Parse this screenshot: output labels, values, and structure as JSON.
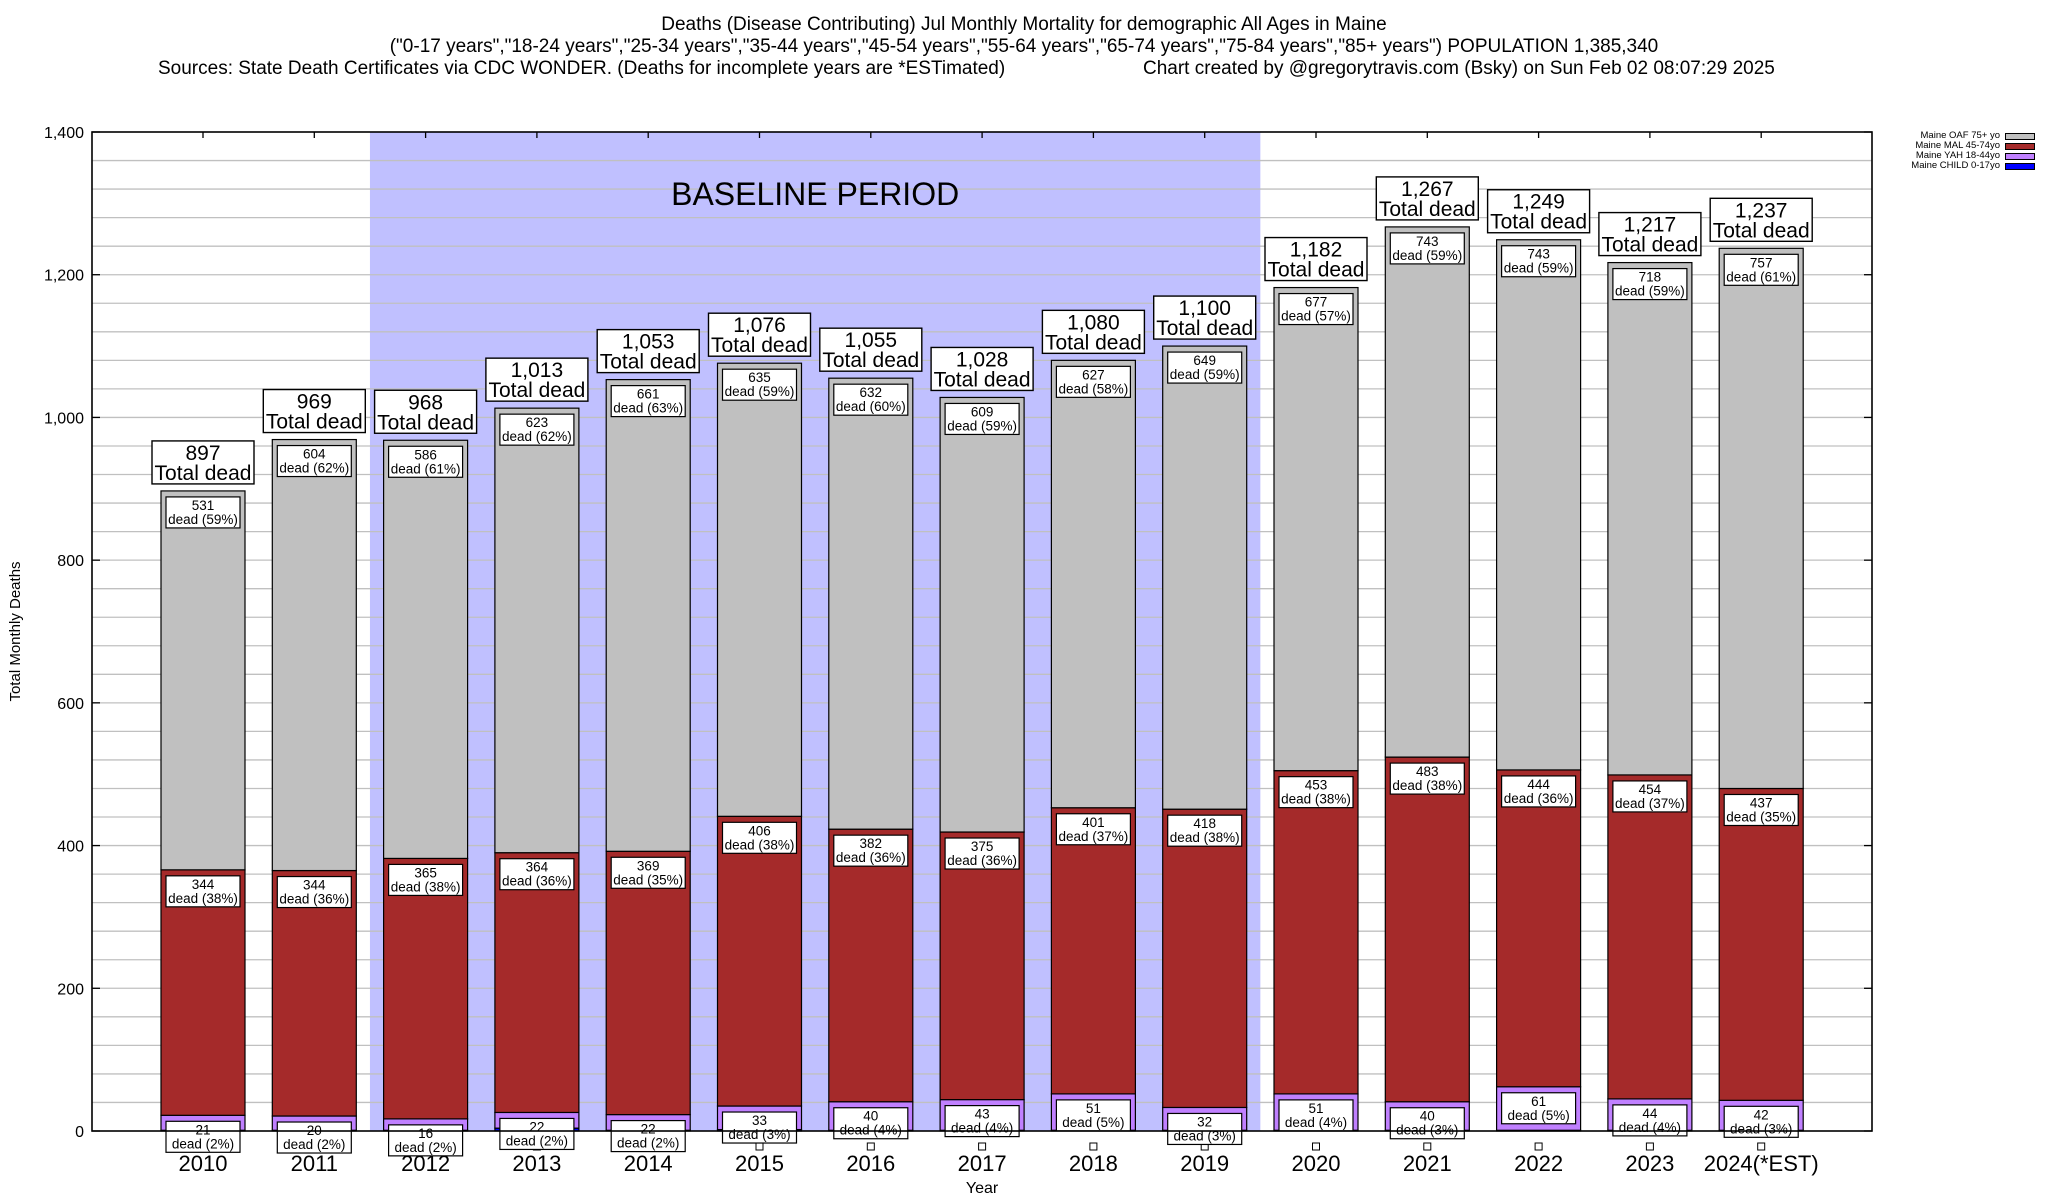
{
  "header": {
    "title": "Deaths (Disease Contributing) Jul Monthly Mortality for demographic All Ages in Maine",
    "subtitle": "(\"0-17 years\",\"18-24 years\",\"25-34 years\",\"35-44 years\",\"45-54 years\",\"55-64 years\",\"65-74 years\",\"75-84 years\",\"85+ years\") POPULATION 1,385,340",
    "sources": "Sources: State Death Certificates via CDC WONDER. (Deaths for incomplete years are *ESTimated)",
    "credit": "Chart created by @gregorytravis.com (Bsky) on Sun Feb 02 08:07:29 2025"
  },
  "chart_data": {
    "type": "bar",
    "stacked": true,
    "xlabel": "Year",
    "ylabel": "Total Monthly Deaths",
    "ylim": [
      0,
      1400
    ],
    "yticks": [
      0,
      200,
      400,
      600,
      800,
      1000,
      1200,
      1400
    ],
    "ytick_labels": [
      "0",
      "200",
      "400",
      "600",
      "800",
      "1,000",
      "1,200",
      "1,400"
    ],
    "grid": true,
    "legend_position": "top-right, outside plot",
    "categories": [
      "2010",
      "2011",
      "2012",
      "2013",
      "2014",
      "2015",
      "2016",
      "2017",
      "2018",
      "2019",
      "2020",
      "2021",
      "2022",
      "2023",
      "2024(*EST)"
    ],
    "annotation": {
      "label": "BASELINE PERIOD",
      "from": "2012",
      "to": "2019",
      "color": "#c0c0ff"
    },
    "total_label_suffix": "Total dead",
    "segment_label_word": "dead",
    "totals": [
      897,
      969,
      968,
      1013,
      1053,
      1076,
      1055,
      1028,
      1080,
      1100,
      1182,
      1267,
      1249,
      1217,
      1237
    ],
    "totals_text": [
      "897",
      "969",
      "968",
      "1,013",
      "1,053",
      "1,076",
      "1,055",
      "1,028",
      "1,080",
      "1,100",
      "1,182",
      "1,267",
      "1,249",
      "1,217",
      "1,237"
    ],
    "series": [
      {
        "name": "Maine CHILD 0-17yo",
        "color": "#0000ff",
        "values": [
          1,
          1,
          1,
          4,
          1,
          2,
          1,
          1,
          1,
          1,
          1,
          1,
          1,
          1,
          1
        ],
        "pct": [],
        "labeled": false
      },
      {
        "name": "Maine YAH 18-44yo",
        "color": "#c080ff",
        "values": [
          21,
          20,
          16,
          22,
          22,
          33,
          40,
          43,
          51,
          32,
          51,
          40,
          61,
          44,
          42
        ],
        "pct": [
          "2%",
          "2%",
          "2%",
          "2%",
          "2%",
          "3%",
          "4%",
          "4%",
          "5%",
          "3%",
          "4%",
          "3%",
          "5%",
          "4%",
          "3%"
        ],
        "labeled": true
      },
      {
        "name": "Maine MAL 45-74yo",
        "color": "#a52a2a",
        "values": [
          344,
          344,
          365,
          364,
          369,
          406,
          382,
          375,
          401,
          418,
          453,
          483,
          444,
          454,
          437
        ],
        "pct": [
          "38%",
          "36%",
          "38%",
          "36%",
          "35%",
          "38%",
          "36%",
          "36%",
          "37%",
          "38%",
          "38%",
          "38%",
          "36%",
          "37%",
          "35%"
        ],
        "labeled": true
      },
      {
        "name": "Maine OAF 75+ yo",
        "color": "#c0c0c0",
        "values": [
          531,
          604,
          586,
          623,
          661,
          635,
          632,
          609,
          627,
          649,
          677,
          743,
          743,
          718,
          757
        ],
        "pct": [
          "59%",
          "62%",
          "61%",
          "62%",
          "63%",
          "59%",
          "60%",
          "59%",
          "58%",
          "59%",
          "57%",
          "59%",
          "59%",
          "59%",
          "61%"
        ],
        "labeled": true
      }
    ]
  }
}
